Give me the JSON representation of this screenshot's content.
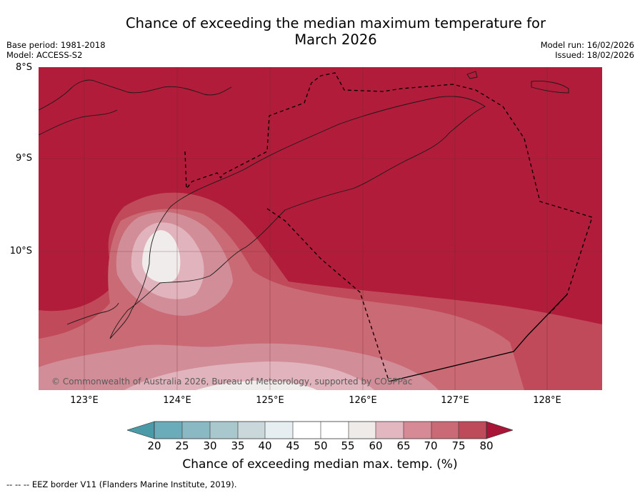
{
  "title_line1": "Chance of exceeding the median maximum temperature for",
  "title_line2": "March 2026",
  "meta_left": {
    "base_period": "Base period: 1981-2018",
    "model": "Model: ACCESS-S2"
  },
  "meta_right": {
    "model_run": "Model run: 16/02/2026",
    "issued": "Issued: 18/02/2026"
  },
  "lat_labels": [
    "8°S",
    "9°S",
    "10°S"
  ],
  "lon_labels": [
    "123°E",
    "124°E",
    "125°E",
    "126°E",
    "127°E",
    "128°E"
  ],
  "copyright": "© Commonwealth of Australia 2026, Bureau of Meteorology, supported by COSPPac",
  "colorbar": {
    "ticks": [
      "20",
      "25",
      "30",
      "35",
      "40",
      "45",
      "50",
      "55",
      "60",
      "65",
      "70",
      "75",
      "80"
    ],
    "colors": [
      "#4a9aa8",
      "#6aacb9",
      "#8ab9c3",
      "#a9c8cd",
      "#cad8dc",
      "#e6eef1",
      "#ffffff",
      "#ffffff",
      "#eeebe9",
      "#e2b7bf",
      "#d58a95",
      "#c96a76",
      "#be4b5a",
      "#a81536"
    ],
    "label": "Chance of exceeding median max. temp. (%)"
  },
  "footnote": "--  --  -- EEZ border V11 (Flanders Marine Institute, 2019).",
  "colors": {
    "level80": "#b01c39",
    "level75": "#c04a59",
    "level70": "#c96a74",
    "level65": "#d28e98",
    "level60": "#e1b4bd",
    "level55": "#efeceb"
  }
}
